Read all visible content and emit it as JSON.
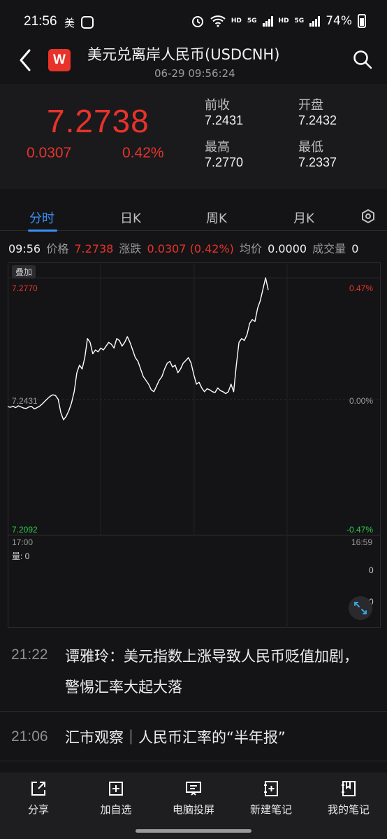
{
  "status": {
    "time": "21:56",
    "carrier": "美",
    "hd1": "HD",
    "g5a": "5G",
    "hd2": "HD",
    "g5b": "5G",
    "battery": "74%"
  },
  "header": {
    "title": "美元兑离岸人民币(USDCNH)",
    "datetime": "06-29 09:56:24",
    "logo": "W"
  },
  "quote": {
    "price": "7.2738",
    "change": "0.0307",
    "change_pct": "0.42%",
    "prev_close_label": "前收",
    "prev_close": "7.2431",
    "open_label": "开盘",
    "open": "7.2432",
    "high_label": "最高",
    "high": "7.2770",
    "low_label": "最低",
    "low": "7.2337",
    "colors": {
      "up": "#e8332b",
      "down": "#2cc84a",
      "accent": "#3a8ff5"
    }
  },
  "tabs": [
    {
      "label": "分时",
      "active": true
    },
    {
      "label": "日K"
    },
    {
      "label": "周K"
    },
    {
      "label": "月K"
    }
  ],
  "info_row": {
    "time": "09:56",
    "price_label": "价格",
    "price": "7.2738",
    "change_label": "涨跌",
    "change": "0.0307 (0.42%)",
    "avg_label": "均价",
    "avg": "0.0000",
    "volume_label": "成交量",
    "volume": "0"
  },
  "chart": {
    "overlay_label": "叠加",
    "y_top": "7.2770",
    "y_mid": "7.2431",
    "y_bottom": "7.2092",
    "pct_top": "0.47%",
    "pct_mid": "0.00%",
    "pct_bottom": "-0.47%",
    "x_start": "17:00",
    "x_end": "16:59",
    "volume_label": "量: 0",
    "vol_axis_top": "0",
    "vol_axis_bottom": "0"
  },
  "news": [
    {
      "time": "21:22",
      "text": "谭雅玲：美元指数上涨导致人民币贬值加剧，警惕汇率大起大落"
    },
    {
      "time": "21:06",
      "text": "汇市观察｜人民币汇率的“半年报”"
    }
  ],
  "bottom_bar": [
    {
      "label": "分享",
      "icon": "share-icon"
    },
    {
      "label": "加自选",
      "icon": "add-watchlist-icon"
    },
    {
      "label": "电脑投屏",
      "icon": "screen-cast-icon"
    },
    {
      "label": "新建笔记",
      "icon": "new-note-icon"
    },
    {
      "label": "我的笔记",
      "icon": "my-notes-icon"
    }
  ],
  "chart_data": {
    "type": "line",
    "series": [
      {
        "x": [
          0,
          1,
          2,
          3,
          4,
          5,
          6,
          7,
          8,
          9,
          10,
          11,
          12,
          13,
          14,
          15,
          16,
          17,
          18,
          19,
          20,
          21,
          22,
          23,
          24,
          25,
          26,
          27,
          28,
          29,
          30,
          31,
          32,
          33,
          34,
          35,
          36,
          37,
          38,
          39,
          40,
          41,
          42,
          43,
          44,
          45,
          46,
          47,
          48,
          49,
          50,
          51,
          52,
          53,
          54,
          55,
          56,
          57,
          58,
          59,
          60,
          61,
          62,
          63,
          64,
          65,
          66,
          67,
          68,
          69,
          70,
          71,
          72,
          73,
          74,
          75,
          76,
          77,
          78,
          79,
          80,
          81,
          82,
          83,
          84,
          85,
          86,
          87,
          88,
          89,
          90,
          91,
          92,
          93,
          94,
          95,
          96,
          97,
          98
        ],
        "y": [
          7.2431,
          7.2429,
          7.2432,
          7.2428,
          7.2433,
          7.243,
          7.2427,
          7.2426,
          7.243,
          7.2431,
          7.2425,
          7.2428,
          7.2432,
          7.2438,
          7.2445,
          7.2452,
          7.2458,
          7.2462,
          7.246,
          7.245,
          7.2415,
          7.2396,
          7.2405,
          7.242,
          7.244,
          7.247,
          7.252,
          7.254,
          7.253,
          7.256,
          7.261,
          7.26,
          7.257,
          7.258,
          7.2575,
          7.2585,
          7.258,
          7.259,
          7.26,
          7.2595,
          7.2585,
          7.261,
          7.2605,
          7.259,
          7.26,
          7.2615,
          7.26,
          7.258,
          7.256,
          7.255,
          7.253,
          7.251,
          7.25,
          7.249,
          7.2475,
          7.247,
          7.2485,
          7.25,
          7.251,
          7.253,
          7.2545,
          7.255,
          7.2535,
          7.254,
          7.252,
          7.253,
          7.2545,
          7.2552,
          7.256,
          7.2545,
          7.2515,
          7.249,
          7.2495,
          7.248,
          7.247,
          7.2478,
          7.2475,
          7.247,
          7.2468,
          7.248,
          7.2473,
          7.247,
          7.2465,
          7.247,
          7.249,
          7.247,
          7.254,
          7.26,
          7.261,
          7.2605,
          7.262,
          7.265,
          7.266,
          7.2655,
          7.269,
          7.271,
          7.274,
          7.277,
          7.2738
        ]
      }
    ],
    "xlabel": "",
    "ylabel": "",
    "ylim": [
      7.2092,
      7.277
    ],
    "x_ticks": [
      "17:00",
      "16:59"
    ],
    "y_ticks": [
      "7.2770",
      "7.2431",
      "7.2092"
    ],
    "grid": true
  }
}
